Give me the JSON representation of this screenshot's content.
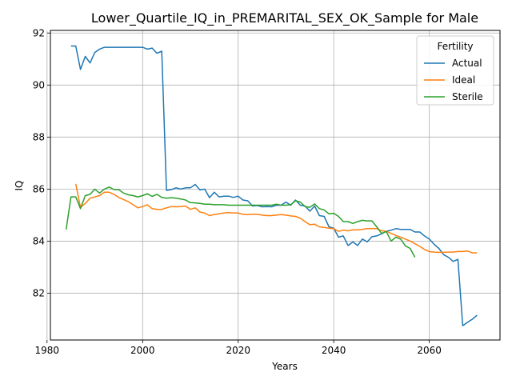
{
  "chart_data": {
    "type": "line",
    "title": "Lower_Quartile_IQ_in_PREMARITAL_SEX_OK_Sample for Male",
    "xlabel": "Years",
    "ylabel": "IQ",
    "xlim": [
      1980.7,
      2074.8
    ],
    "ylim": [
      80.2,
      92.1
    ],
    "xticks": [
      1980,
      2000,
      2020,
      2040,
      2060
    ],
    "yticks": [
      82,
      84,
      86,
      88,
      90,
      92
    ],
    "grid": true,
    "legend": {
      "title": "Fertility",
      "position": "top-right"
    },
    "series": [
      {
        "name": "Actual",
        "color": "#1f77b4",
        "x": [
          1985,
          1986,
          1987,
          1988,
          1989,
          1990,
          1991,
          1992,
          1993,
          1994,
          1995,
          1996,
          1997,
          1998,
          1999,
          2000,
          2001,
          2002,
          2003,
          2004,
          2005,
          2006,
          2007,
          2008,
          2009,
          2010,
          2011,
          2012,
          2013,
          2014,
          2015,
          2016,
          2017,
          2018,
          2019,
          2020,
          2021,
          2022,
          2023,
          2024,
          2025,
          2026,
          2027,
          2028,
          2029,
          2030,
          2031,
          2032,
          2033,
          2034,
          2035,
          2036,
          2037,
          2038,
          2039,
          2040,
          2041,
          2042,
          2043,
          2044,
          2045,
          2046,
          2047,
          2048,
          2049,
          2050,
          2051,
          2052,
          2053,
          2054,
          2055,
          2056,
          2057,
          2058,
          2059,
          2060,
          2061,
          2062,
          2063,
          2064,
          2065,
          2066,
          2067,
          2068,
          2069,
          2070
        ],
        "y": [
          91.5,
          91.5,
          90.6,
          91.1,
          90.85,
          91.25,
          91.38,
          91.45,
          91.45,
          91.45,
          91.45,
          91.45,
          91.45,
          91.45,
          91.45,
          91.45,
          91.38,
          91.42,
          91.22,
          91.3,
          85.95,
          85.98,
          86.05,
          86.0,
          86.05,
          86.05,
          86.18,
          85.97,
          86.0,
          85.67,
          85.88,
          85.7,
          85.73,
          85.73,
          85.68,
          85.73,
          85.58,
          85.55,
          85.35,
          85.37,
          85.32,
          85.33,
          85.32,
          85.38,
          85.38,
          85.5,
          85.38,
          85.58,
          85.38,
          85.35,
          85.15,
          85.35,
          84.98,
          84.95,
          84.55,
          84.5,
          84.15,
          84.2,
          83.83,
          83.97,
          83.83,
          84.08,
          83.97,
          84.17,
          84.2,
          84.28,
          84.38,
          84.42,
          84.48,
          84.45,
          84.45,
          84.45,
          84.35,
          84.35,
          84.2,
          84.08,
          83.88,
          83.72,
          83.48,
          83.38,
          83.22,
          83.3,
          80.75,
          80.88,
          81.0,
          81.15
        ]
      },
      {
        "name": "Ideal",
        "color": "#ff7f0e",
        "x": [
          1986,
          1987,
          1988,
          1989,
          1990,
          1991,
          1992,
          1993,
          1994,
          1995,
          1996,
          1997,
          1998,
          1999,
          2000,
          2001,
          2002,
          2003,
          2004,
          2005,
          2006,
          2007,
          2008,
          2009,
          2010,
          2011,
          2012,
          2013,
          2014,
          2015,
          2016,
          2017,
          2018,
          2019,
          2020,
          2021,
          2022,
          2023,
          2024,
          2025,
          2026,
          2027,
          2028,
          2029,
          2030,
          2031,
          2032,
          2033,
          2034,
          2035,
          2036,
          2037,
          2038,
          2039,
          2040,
          2041,
          2042,
          2043,
          2044,
          2045,
          2046,
          2047,
          2048,
          2049,
          2050,
          2051,
          2052,
          2053,
          2054,
          2055,
          2056,
          2057,
          2058,
          2059,
          2060,
          2061,
          2062,
          2063,
          2064,
          2065,
          2066,
          2067,
          2068,
          2069,
          2070
        ],
        "y": [
          86.2,
          85.3,
          85.45,
          85.65,
          85.7,
          85.75,
          85.88,
          85.88,
          85.8,
          85.68,
          85.6,
          85.52,
          85.4,
          85.28,
          85.33,
          85.4,
          85.25,
          85.22,
          85.22,
          85.28,
          85.33,
          85.32,
          85.33,
          85.35,
          85.22,
          85.28,
          85.12,
          85.08,
          84.98,
          85.02,
          85.05,
          85.08,
          85.1,
          85.08,
          85.08,
          85.03,
          85.02,
          85.03,
          85.03,
          85.0,
          84.98,
          84.98,
          85.0,
          85.02,
          85.0,
          84.97,
          84.95,
          84.88,
          84.75,
          84.63,
          84.65,
          84.55,
          84.53,
          84.5,
          84.48,
          84.38,
          84.42,
          84.4,
          84.43,
          84.43,
          84.45,
          84.48,
          84.48,
          84.48,
          84.4,
          84.38,
          84.3,
          84.22,
          84.15,
          84.08,
          84.0,
          83.9,
          83.8,
          83.68,
          83.6,
          83.58,
          83.57,
          83.57,
          83.58,
          83.58,
          83.6,
          83.6,
          83.62,
          83.55,
          83.55
        ]
      },
      {
        "name": "Sterile",
        "color": "#2ca02c",
        "x": [
          1984,
          1985,
          1986,
          1987,
          1988,
          1989,
          1990,
          1991,
          1992,
          1993,
          1994,
          1995,
          1996,
          1997,
          1998,
          1999,
          2000,
          2001,
          2002,
          2003,
          2004,
          2005,
          2006,
          2007,
          2008,
          2009,
          2010,
          2011,
          2012,
          2013,
          2014,
          2015,
          2016,
          2017,
          2018,
          2019,
          2020,
          2021,
          2022,
          2023,
          2024,
          2025,
          2026,
          2027,
          2028,
          2029,
          2030,
          2031,
          2032,
          2033,
          2034,
          2035,
          2036,
          2037,
          2038,
          2039,
          2040,
          2041,
          2042,
          2043,
          2044,
          2045,
          2046,
          2047,
          2048,
          2049,
          2050,
          2051,
          2052,
          2053,
          2054,
          2055,
          2056,
          2057
        ],
        "y": [
          84.45,
          85.7,
          85.7,
          85.25,
          85.75,
          85.8,
          86.0,
          85.85,
          86.0,
          86.08,
          85.98,
          85.98,
          85.85,
          85.78,
          85.75,
          85.7,
          85.75,
          85.82,
          85.72,
          85.8,
          85.68,
          85.65,
          85.67,
          85.65,
          85.62,
          85.58,
          85.48,
          85.47,
          85.45,
          85.42,
          85.42,
          85.4,
          85.4,
          85.4,
          85.38,
          85.38,
          85.38,
          85.38,
          85.38,
          85.38,
          85.38,
          85.38,
          85.38,
          85.38,
          85.42,
          85.38,
          85.38,
          85.4,
          85.55,
          85.5,
          85.33,
          85.3,
          85.43,
          85.25,
          85.2,
          85.05,
          85.07,
          84.95,
          84.75,
          84.75,
          84.68,
          84.75,
          84.8,
          84.78,
          84.78,
          84.55,
          84.3,
          84.37,
          84.0,
          84.15,
          84.08,
          83.82,
          83.72,
          83.38
        ]
      }
    ]
  }
}
